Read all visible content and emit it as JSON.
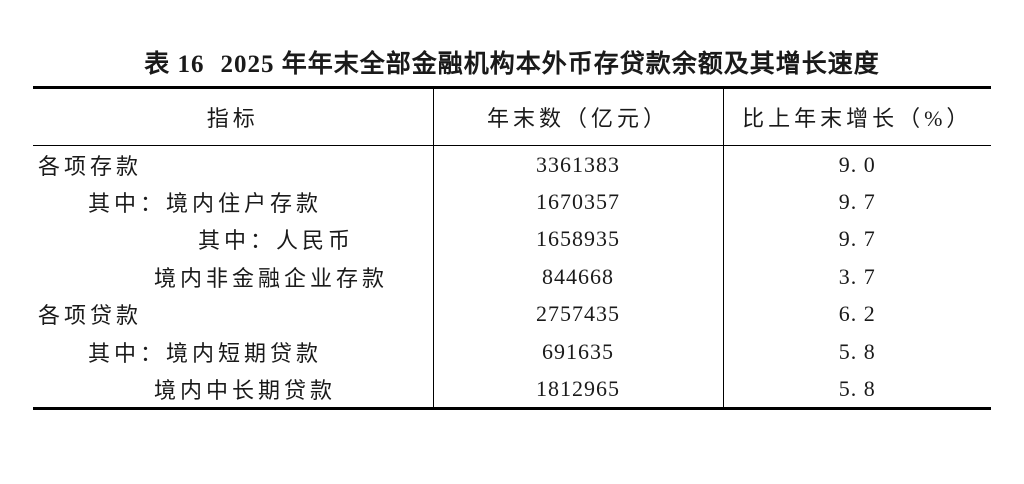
{
  "title": {
    "label": "表 16",
    "text": "2025 年年末全部金融机构本外币存贷款余额及其增长速度"
  },
  "table": {
    "headers": {
      "indicator": "指标",
      "value": "年末数（亿元）",
      "growth": "比上年末增长（%）"
    },
    "rows": [
      {
        "indicator": "各项存款",
        "value": "3361383",
        "growth": "9. 0"
      },
      {
        "indicator": "其中：境内住户存款",
        "value": "1670357",
        "growth": "9. 7"
      },
      {
        "indicator": "其中：人民币",
        "value": "1658935",
        "growth": "9. 7"
      },
      {
        "indicator": "境内非金融企业存款",
        "value": "844668",
        "growth": "3. 7"
      },
      {
        "indicator": "各项贷款",
        "value": "2757435",
        "growth": "6. 2"
      },
      {
        "indicator": "其中：境内短期贷款",
        "value": "691635",
        "growth": "5. 8"
      },
      {
        "indicator": "境内中长期贷款",
        "value": "1812965",
        "growth": "5. 8"
      }
    ]
  },
  "colors": {
    "text": "#1a1a1a",
    "line": "#000000",
    "background": "#ffffff"
  }
}
